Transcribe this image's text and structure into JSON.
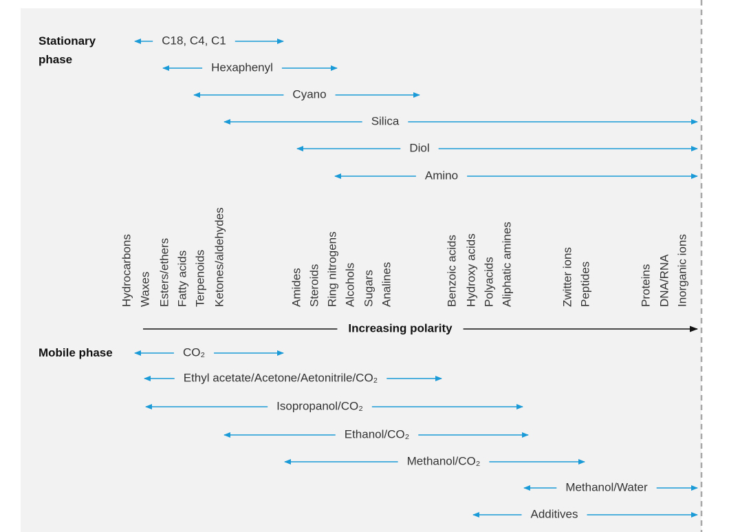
{
  "stationary_phase": {
    "label": "Stationary phase",
    "items": [
      "C18, C4, C1",
      "Hexaphenyl",
      "Cyano",
      "Silica",
      "Diol",
      "Amino"
    ]
  },
  "compounds": [
    "Hydrocarbons",
    "Waxes",
    "Esters/ethers",
    "Fatty acids",
    "Terpenoids",
    "Ketones/aldehydes",
    "Amides",
    "Steroids",
    "Ring nitrogens",
    "Alcohols",
    "Sugars",
    "Analines",
    "Benzoic acids",
    "Hydroxy acids",
    "Polyacids",
    "Aliphatic amines",
    "Zwitter ions",
    "Peptides",
    "Proteins",
    "DNA/RNA",
    "Inorganic ions"
  ],
  "axis_label": "Increasing polarity",
  "mobile_phase": {
    "label": "Mobile phase",
    "items": [
      "CO₂",
      "Ethyl acetate/Acetone/Aetonitrile/CO₂",
      "Isopropanol/CO₂",
      "Ethanol/CO₂",
      "Methanol/CO₂",
      "Methanol/Water",
      "Additives"
    ]
  }
}
